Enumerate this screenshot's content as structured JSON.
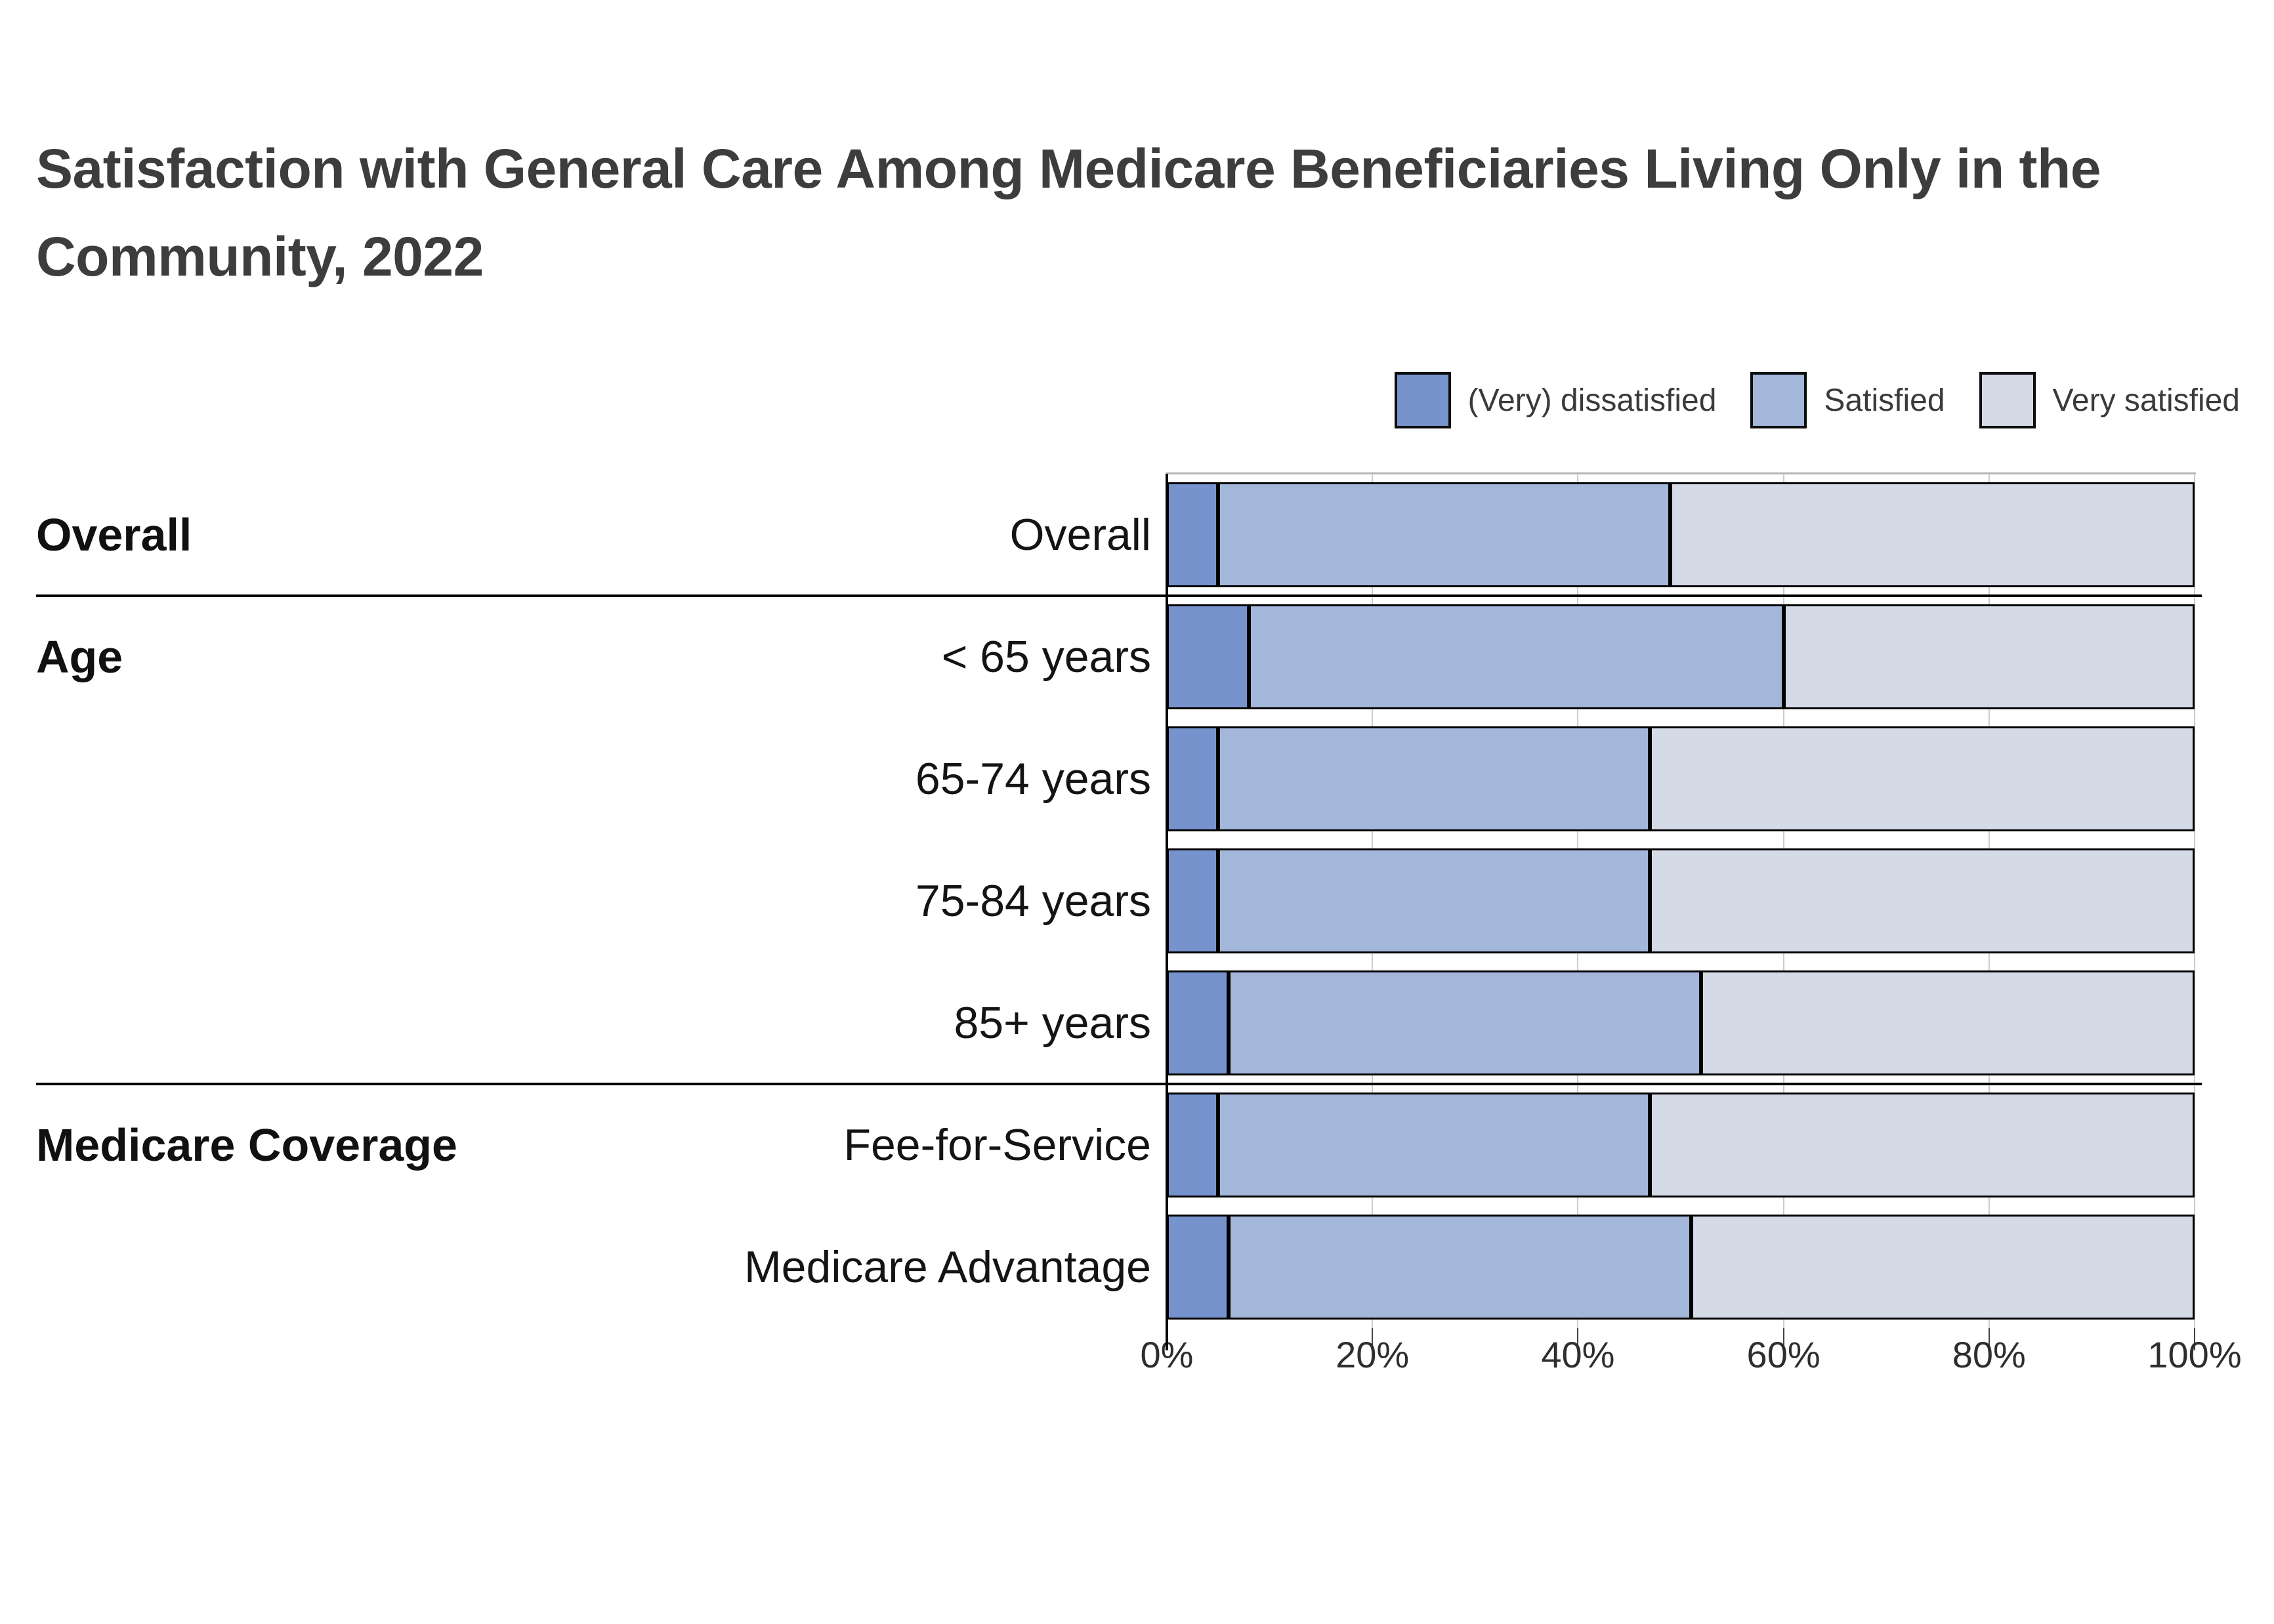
{
  "title": "Satisfaction with General Care Among Medicare Beneficiaries Living Only in the Community, 2022",
  "legend": {
    "items": [
      {
        "label": "(Very) dissatisfied",
        "color": "#7693ce"
      },
      {
        "label": "Satisfied",
        "color": "#a3b7db"
      },
      {
        "label": "Very satisfied",
        "color": "#d4dbe6"
      }
    ]
  },
  "chart_data": {
    "type": "bar",
    "stacked": true,
    "orientation": "horizontal",
    "unit": "percent",
    "grid": true,
    "legend_position": "top-right",
    "xlim": [
      0,
      100
    ],
    "x_ticks": [
      "0%",
      "20%",
      "40%",
      "60%",
      "80%",
      "100%"
    ],
    "x_tick_values": [
      0,
      20,
      40,
      60,
      80,
      100
    ],
    "categories": [
      "Overall",
      "< 65 years",
      "65-74 years",
      "75-84 years",
      "85+ years",
      "Fee-for-Service",
      "Medicare Advantage"
    ],
    "groups": [
      {
        "label": "Overall",
        "start_row": 0,
        "row_count": 1
      },
      {
        "label": "Age",
        "start_row": 1,
        "row_count": 4
      },
      {
        "label": "Medicare Coverage",
        "start_row": 5,
        "row_count": 2
      }
    ],
    "series": [
      {
        "name": "(Very) dissatisfied",
        "color": "#7693ce",
        "values": [
          5,
          8,
          5,
          5,
          6,
          5,
          6
        ]
      },
      {
        "name": "Satisfied",
        "color": "#a3b7db",
        "values": [
          44,
          52,
          42,
          42,
          46,
          42,
          45
        ]
      },
      {
        "name": "Very satisfied",
        "color": "#d4dbe6",
        "values": [
          51,
          40,
          53,
          53,
          48,
          53,
          49
        ]
      }
    ]
  },
  "colors": {
    "dissatisfied": "#7693ce",
    "satisfied": "#a3b7db",
    "very_satisfied": "#d4dbe6",
    "segment_border": "#000000",
    "gridline": "#cccccc",
    "separator": "#000000",
    "axis": "#000000",
    "title_text": "#3d3d3d",
    "label_text": "#141414",
    "tick_text": "#2e2e2e",
    "background": "#ffffff"
  }
}
